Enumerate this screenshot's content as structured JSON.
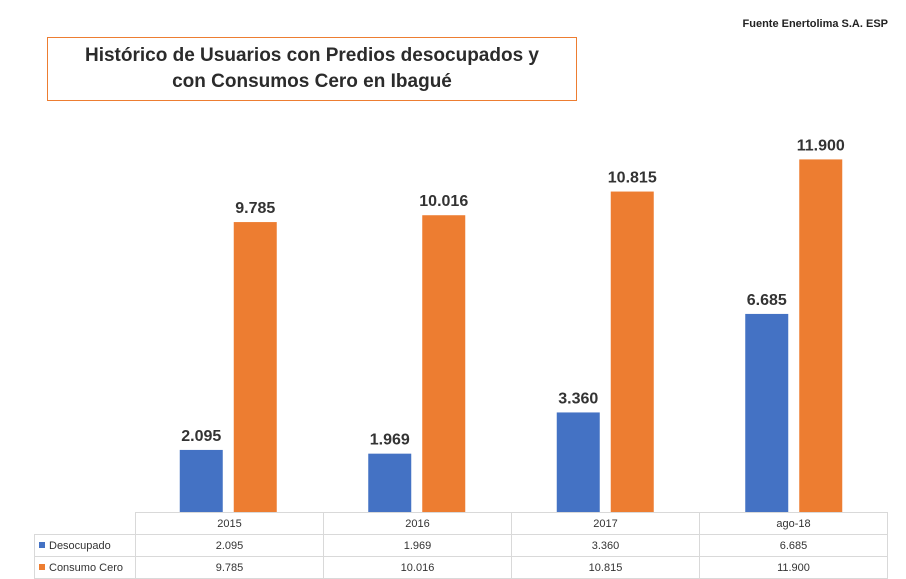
{
  "source_note": "Fuente Enertolima S.A. ESP",
  "colors": {
    "desocupado": "#4472C4",
    "consumo_cero": "#ED7D31",
    "title_border": "#ED7D31"
  },
  "chart_data": {
    "type": "bar",
    "title_line1": "Histórico de Usuarios con Predios desocupados y",
    "title_line2": "con Consumos Cero en Ibagué",
    "categories": [
      "2015",
      "2016",
      "2017",
      "ago-18"
    ],
    "series": [
      {
        "name": "Desocupado",
        "values": [
          2095,
          1969,
          3360,
          6685
        ],
        "labels": [
          "2.095",
          "1.969",
          "3.360",
          "6.685"
        ]
      },
      {
        "name": "Consumo Cero",
        "values": [
          9785,
          10016,
          10815,
          11900
        ],
        "labels": [
          "9.785",
          "10.016",
          "10.815",
          "11.900"
        ]
      }
    ],
    "ylim": [
      0,
      13500
    ],
    "grid": false,
    "legend": "data-table-below"
  }
}
